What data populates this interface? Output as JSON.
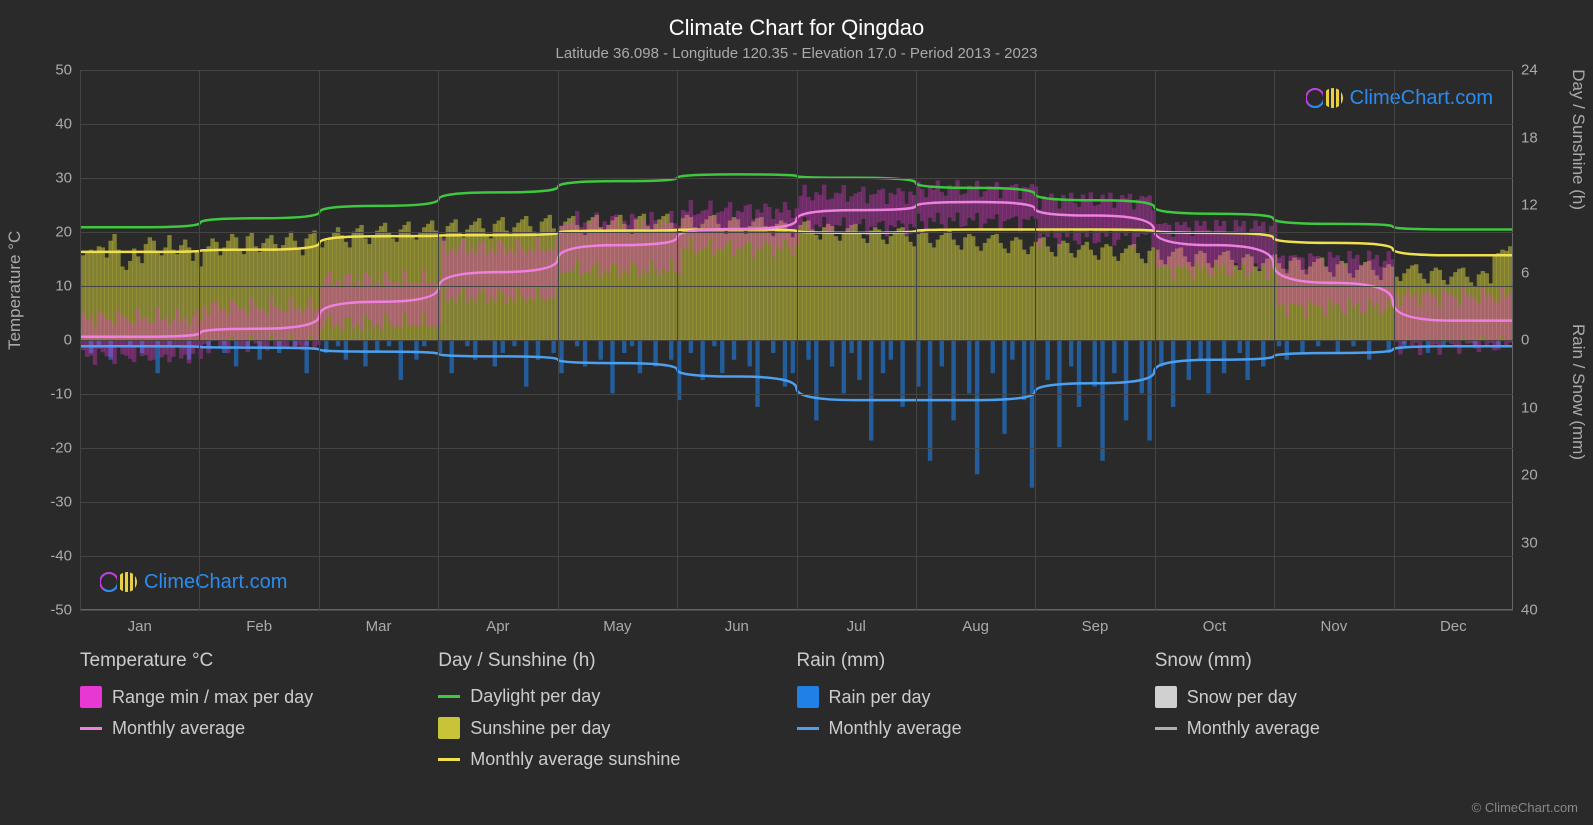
{
  "title": "Climate Chart for Qingdao",
  "subtitle": "Latitude 36.098 - Longitude 120.35 - Elevation 17.0 - Period 2013 - 2023",
  "left_axis": {
    "label": "Temperature °C",
    "min": -50,
    "max": 50,
    "ticks": [
      50,
      40,
      30,
      20,
      10,
      0,
      -10,
      -20,
      -30,
      -40,
      -50
    ]
  },
  "right_axis_top": {
    "label": "Day / Sunshine (h)",
    "min": 0,
    "max": 24,
    "ticks": [
      24,
      18,
      12,
      6,
      0
    ]
  },
  "right_axis_bot": {
    "label": "Rain / Snow (mm)",
    "min": 0,
    "max": 40,
    "ticks": [
      10,
      20,
      30,
      40
    ]
  },
  "months": [
    "Jan",
    "Feb",
    "Mar",
    "Apr",
    "May",
    "Jun",
    "Jul",
    "Aug",
    "Sep",
    "Oct",
    "Nov",
    "Dec"
  ],
  "colors": {
    "background": "#2a2a2a",
    "grid": "#444444",
    "temp_range": "#e838d4",
    "temp_avg": "#f080e0",
    "daylight": "#3dc83d",
    "sunshine_bar": "#c8c43a",
    "sunshine_avg": "#f0e050",
    "rain_bar": "#2080e8",
    "rain_avg": "#4ca0f0",
    "snow_bar": "#d0d0d0",
    "snow_avg": "#b0b0b0",
    "text": "#cccccc",
    "text_dim": "#aaaaaa",
    "title": "#ffffff"
  },
  "series": {
    "daylight_h": [
      10.0,
      10.8,
      11.9,
      13.1,
      14.1,
      14.7,
      14.4,
      13.5,
      12.4,
      11.2,
      10.3,
      9.8
    ],
    "sunshine_avg_h": [
      7.8,
      8.0,
      9.2,
      9.3,
      9.7,
      9.8,
      9.5,
      9.8,
      9.8,
      9.5,
      8.6,
      7.5
    ],
    "sunshine_daily_h": [
      7.5,
      7.7,
      8.0,
      7.9,
      8.3,
      8.2,
      7.3,
      8.8,
      9.4,
      8.0,
      6.5,
      6.2,
      7.0,
      8.1,
      7.4,
      6.8,
      8.5,
      9.1,
      8.8,
      7.9,
      7.5,
      8.2,
      9.3,
      8.0,
      7.6,
      8.4,
      8.9,
      8.2,
      7.0,
      7.8,
      6.5,
      8.0,
      8.3,
      9.0,
      8.7,
      7.5,
      8.2,
      8.8,
      9.4,
      9.1,
      8.0,
      7.6,
      9.2,
      9.5,
      8.3,
      7.8,
      8.6,
      9.0,
      9.3,
      8.5,
      7.9,
      8.4,
      9.1,
      9.6,
      8.8,
      8.0,
      7.5,
      9.0,
      9.4,
      9.7,
      8.5,
      8.2,
      8.8,
      9.1,
      9.5,
      10.0,
      9.3,
      8.7,
      8.2,
      9.6,
      9.9,
      10.2,
      9.0,
      8.5,
      9.3,
      9.7,
      10.1,
      10.4,
      9.5,
      9.0,
      8.7,
      9.8,
      10.2,
      10.5,
      9.3,
      8.9,
      9.5,
      10.0,
      10.3,
      10.6,
      9.7,
      9.2,
      8.8,
      10.1,
      10.4,
      10.7,
      9.5,
      9.1,
      9.8,
      10.2,
      10.5,
      10.8,
      9.9,
      9.4,
      9.0,
      10.3,
      10.6,
      10.9,
      9.7,
      9.3,
      10.0,
      10.4,
      10.7,
      11.0,
      10.1,
      9.6,
      9.2,
      10.5,
      10.8,
      11.1,
      9.9,
      9.4,
      10.1,
      10.5,
      10.8,
      11.0,
      10.2,
      9.7,
      9.3,
      10.6,
      10.9,
      11.1,
      10.0,
      9.5,
      10.2,
      10.6,
      10.9,
      11.1,
      10.3,
      9.8,
      9.4,
      10.7,
      11.0,
      11.2,
      10.1,
      9.6,
      10.3,
      10.7,
      11.0,
      11.2,
      10.4,
      9.9,
      9.5,
      10.8,
      11.1,
      10.9,
      10.0,
      9.6,
      10.3,
      10.7,
      11.0,
      11.1,
      10.3,
      9.8,
      9.4,
      10.6,
      10.9,
      10.7,
      9.8,
      9.4,
      10.1,
      10.5,
      10.8,
      10.9,
      10.1,
      9.6,
      9.2,
      10.3,
      10.6,
      10.4,
      9.5,
      9.1,
      9.8,
      10.2,
      10.5,
      10.6,
      9.8,
      9.3,
      8.9,
      10.0,
      10.3,
      10.1,
      9.2,
      8.8,
      9.5,
      9.9,
      10.2,
      10.3,
      9.5,
      9.0,
      8.6,
      9.7,
      10.0,
      9.8,
      8.9,
      8.5,
      9.2,
      9.6,
      9.9,
      10.0,
      9.2,
      8.7,
      8.3,
      9.4,
      9.7,
      9.5,
      8.6,
      8.2,
      8.9,
      9.3,
      9.6,
      9.7,
      8.9,
      8.4,
      8.0,
      9.1,
      9.4,
      9.2,
      8.3,
      7.9,
      8.6,
      9.0,
      9.3,
      9.4,
      8.6,
      8.1,
      7.7,
      8.8,
      9.1,
      8.9,
      8.0,
      7.6,
      8.3,
      8.7,
      9.0,
      9.1,
      8.3,
      7.8,
      7.4,
      8.5,
      8.8,
      8.6,
      7.7,
      7.3,
      8.0,
      8.4,
      8.7,
      8.0,
      7.5,
      7.1,
      8.2,
      8.5,
      8.3,
      7.4,
      7.0,
      7.7,
      8.1,
      8.4,
      8.5,
      7.7,
      7.2,
      6.8,
      7.9,
      8.2,
      8.0,
      7.1,
      6.7,
      7.4,
      7.8,
      8.1,
      8.2,
      7.4,
      6.9,
      6.5,
      7.6,
      7.9,
      7.7,
      6.8,
      6.4,
      7.1,
      7.5,
      7.8,
      7.9,
      7.1,
      6.6,
      6.2,
      7.3,
      7.6,
      7.4,
      6.5,
      6.1,
      6.8,
      7.2,
      7.5,
      7.6,
      6.8,
      6.3,
      5.9,
      7.0,
      7.3,
      7.1,
      6.2,
      5.8,
      6.5,
      6.9,
      7.2,
      7.3,
      6.5,
      6.0,
      5.6,
      6.7,
      7.0,
      6.8,
      5.9,
      5.5,
      6.2,
      6.6,
      6.9,
      7.0,
      6.2,
      5.7,
      5.3,
      6.4,
      6.7,
      6.5,
      5.6,
      5.2,
      5.9,
      6.3,
      6.6,
      6.7,
      5.9,
      5.4,
      5.0,
      6.1,
      6.4,
      6.2,
      5.3,
      4.9,
      5.6,
      6.0,
      6.3,
      6.4,
      5.6,
      5.1,
      4.7,
      5.8,
      6.1,
      5.9,
      5.0
    ],
    "temp_avg_c": [
      0.5,
      2.0,
      7.0,
      12.5,
      17.5,
      20.5,
      24.0,
      25.5,
      23.0,
      17.5,
      10.5,
      3.5
    ],
    "temp_min_c": [
      -3,
      -1,
      3,
      8,
      13,
      17,
      21,
      22,
      19,
      13,
      6,
      -1
    ],
    "temp_max_c": [
      4,
      6,
      11,
      17,
      22,
      24,
      27,
      28,
      26,
      21,
      15,
      8
    ],
    "rain_avg_mm": [
      1.0,
      1.2,
      1.8,
      2.5,
      3.5,
      5.5,
      9.0,
      9.0,
      6.5,
      3.0,
      2.0,
      1.0
    ],
    "rain_daily_mm": [
      0,
      0,
      2,
      0,
      1,
      0,
      0,
      3,
      0,
      0,
      0,
      0,
      1,
      0,
      0,
      2,
      0,
      0,
      0,
      5,
      0,
      0,
      1,
      0,
      0,
      0,
      0,
      3,
      0,
      0,
      0,
      0,
      1,
      0,
      0,
      0,
      2,
      0,
      0,
      4,
      0,
      0,
      1,
      0,
      0,
      3,
      0,
      0,
      0,
      0,
      2,
      0,
      0,
      0,
      1,
      0,
      0,
      5,
      0,
      0,
      0,
      0,
      2,
      0,
      0,
      1,
      0,
      3,
      0,
      0,
      0,
      0,
      4,
      0,
      0,
      2,
      0,
      0,
      1,
      0,
      0,
      6,
      0,
      0,
      0,
      3,
      0,
      1,
      0,
      0,
      0,
      2,
      0,
      0,
      5,
      0,
      0,
      0,
      1,
      0,
      3,
      0,
      0,
      0,
      0,
      4,
      0,
      2,
      0,
      0,
      1,
      0,
      0,
      7,
      0,
      0,
      3,
      0,
      0,
      0,
      2,
      0,
      5,
      0,
      0,
      0,
      1,
      0,
      4,
      0,
      0,
      0,
      3,
      0,
      0,
      8,
      0,
      0,
      2,
      0,
      1,
      0,
      5,
      0,
      0,
      0,
      4,
      0,
      0,
      0,
      3,
      0,
      9,
      0,
      0,
      2,
      0,
      0,
      6,
      0,
      0,
      1,
      0,
      5,
      0,
      0,
      3,
      0,
      0,
      0,
      4,
      0,
      10,
      0,
      0,
      0,
      2,
      0,
      0,
      7,
      0,
      5,
      0,
      0,
      0,
      3,
      0,
      12,
      0,
      0,
      0,
      4,
      0,
      0,
      8,
      0,
      2,
      0,
      6,
      0,
      0,
      15,
      0,
      0,
      5,
      0,
      3,
      0,
      0,
      10,
      0,
      0,
      0,
      7,
      0,
      0,
      18,
      0,
      0,
      4,
      0,
      0,
      12,
      0,
      0,
      0,
      8,
      0,
      20,
      0,
      0,
      0,
      5,
      0,
      0,
      14,
      0,
      3,
      0,
      0,
      9,
      0,
      22,
      0,
      0,
      0,
      6,
      0,
      0,
      16,
      0,
      0,
      4,
      0,
      10,
      0,
      0,
      0,
      7,
      0,
      18,
      0,
      0,
      5,
      0,
      0,
      12,
      0,
      0,
      0,
      8,
      0,
      15,
      0,
      0,
      4,
      0,
      0,
      10,
      0,
      0,
      0,
      6,
      0,
      0,
      3,
      0,
      8,
      0,
      0,
      0,
      5,
      0,
      0,
      0,
      2,
      0,
      6,
      0,
      0,
      0,
      4,
      0,
      0,
      0,
      1,
      0,
      3,
      0,
      0,
      0,
      2,
      0,
      0,
      0,
      1,
      0,
      0,
      0,
      0,
      2,
      0,
      0,
      0,
      1,
      0,
      0,
      0,
      3,
      0,
      0,
      0,
      0,
      2,
      0,
      0,
      0,
      1,
      0,
      0,
      0,
      0,
      0,
      2,
      0,
      0,
      0,
      1,
      0,
      0,
      0,
      0,
      0,
      0,
      0,
      1,
      0,
      0,
      0,
      0,
      0,
      1,
      0,
      0,
      0
    ]
  },
  "legend": {
    "temp": {
      "title": "Temperature °C",
      "range": "Range min / max per day",
      "avg": "Monthly average"
    },
    "sun": {
      "title": "Day / Sunshine (h)",
      "daylight": "Daylight per day",
      "sunshine": "Sunshine per day",
      "avg": "Monthly average sunshine"
    },
    "rain": {
      "title": "Rain (mm)",
      "daily": "Rain per day",
      "avg": "Monthly average"
    },
    "snow": {
      "title": "Snow (mm)",
      "daily": "Snow per day",
      "avg": "Monthly average"
    }
  },
  "watermark": "ClimeChart.com",
  "copyright": "© ClimeChart.com"
}
